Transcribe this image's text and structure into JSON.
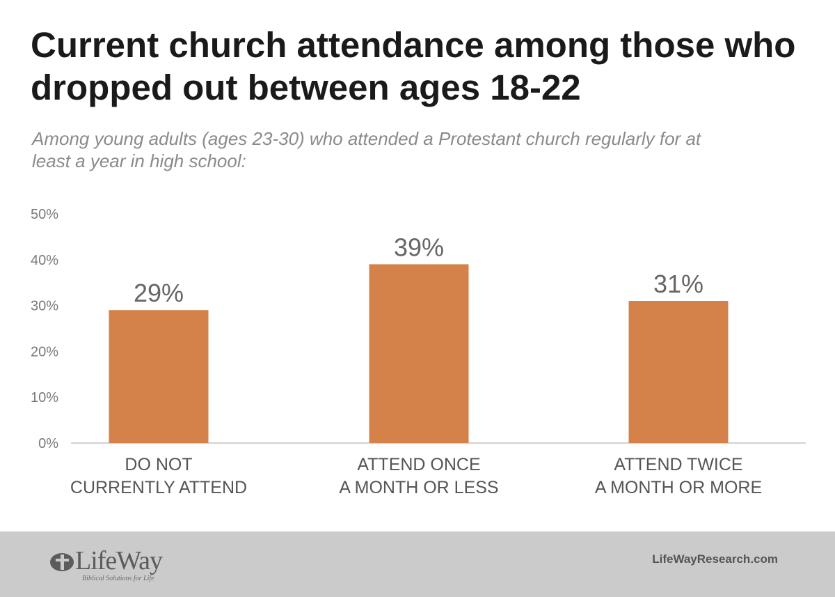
{
  "title": "Current church attendance among those who dropped out between ages 18-22",
  "subtitle": "Among young adults (ages 23-30) who attended a Protestant church regularly for at least a year in high school:",
  "chart_data": {
    "type": "bar",
    "categories": [
      [
        "DO NOT",
        "CURRENTLY ATTEND"
      ],
      [
        "ATTEND ONCE",
        "A MONTH OR LESS"
      ],
      [
        "ATTEND TWICE",
        "A MONTH OR MORE"
      ]
    ],
    "values": [
      29,
      39,
      31
    ],
    "value_labels": [
      "29%",
      "39%",
      "31%"
    ],
    "ylim": [
      0,
      50
    ],
    "yticks": [
      "0%",
      "10%",
      "20%",
      "30%",
      "40%",
      "50%"
    ],
    "bar_color": "#d4824a",
    "grid": false,
    "legend": "none"
  },
  "footer": {
    "logo_name": "LifeWay",
    "logo_tagline": "Biblical Solutions for Life",
    "site": "LifeWayResearch.com",
    "background": "#cbcbcb"
  }
}
